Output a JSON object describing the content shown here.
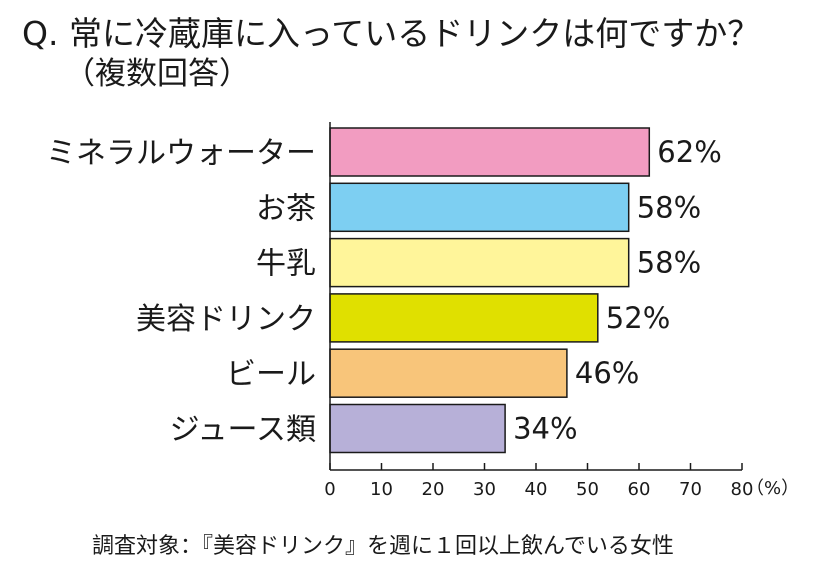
{
  "question": {
    "line1": "Q. 常に冷蔵庫に入っているドリンクは何ですか？",
    "line2": "（複数回答）"
  },
  "chart_data": {
    "type": "bar",
    "orientation": "horizontal",
    "categories": [
      "ミネラルウォーター",
      "お茶",
      "牛乳",
      "美容ドリンク",
      "ビール",
      "ジュース類"
    ],
    "values": [
      62,
      58,
      58,
      52,
      46,
      34
    ],
    "value_labels": [
      "62%",
      "58%",
      "58%",
      "52%",
      "46%",
      "34%"
    ],
    "bar_colors": [
      "#f29cc1",
      "#7dcff2",
      "#fff59a",
      "#e0e000",
      "#f8c57a",
      "#b7b0d8"
    ],
    "xlim": [
      0,
      80
    ],
    "xticks": [
      0,
      10,
      20,
      30,
      40,
      50,
      60,
      70,
      80
    ],
    "xunit": "（%）",
    "grid": false
  },
  "footnote": "調査対象：『美容ドリンク』を週に１回以上飲んでいる女性"
}
